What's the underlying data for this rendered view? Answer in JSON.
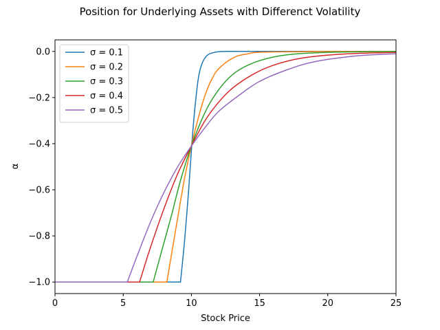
{
  "chart_data": {
    "type": "line",
    "title": "Position for Underlying Assets with Differenct Volatility",
    "xlabel": "Stock Price",
    "ylabel": "α",
    "xlim": [
      0,
      25
    ],
    "ylim": [
      -1.05,
      0.05
    ],
    "x_ticks": [
      0,
      5,
      10,
      15,
      20,
      25
    ],
    "y_ticks": [
      0.0,
      -0.2,
      -0.4,
      -0.6,
      -0.8,
      -1.0
    ],
    "x_tick_labels": [
      "0",
      "5",
      "10",
      "15",
      "20",
      "25"
    ],
    "y_tick_labels": [
      "0.0",
      "−0.2",
      "−0.4",
      "−0.6",
      "−0.8",
      "−1.0"
    ],
    "grid": false,
    "legend_position": "top-left",
    "series": [
      {
        "name": "σ = 0.1",
        "color": "#1f77b4",
        "x": [
          0,
          9.2,
          9.5,
          9.8,
          10.0,
          10.2,
          10.5,
          10.8,
          11.2,
          11.8,
          12.5,
          14,
          25
        ],
        "y": [
          -1.0,
          -1.0,
          -0.82,
          -0.6,
          -0.43,
          -0.28,
          -0.12,
          -0.05,
          -0.015,
          -0.003,
          0.0,
          0.0,
          0.0
        ]
      },
      {
        "name": "σ = 0.2",
        "color": "#ff7f0e",
        "x": [
          0,
          8.2,
          8.6,
          9.0,
          9.5,
          10.0,
          10.5,
          11.0,
          11.5,
          12.0,
          13.0,
          14.0,
          16.0,
          25
        ],
        "y": [
          -1.0,
          -1.0,
          -0.86,
          -0.72,
          -0.55,
          -0.41,
          -0.29,
          -0.19,
          -0.12,
          -0.075,
          -0.03,
          -0.012,
          -0.002,
          0.0
        ]
      },
      {
        "name": "σ = 0.3",
        "color": "#2ca02c",
        "x": [
          0,
          7.2,
          7.8,
          8.5,
          9.2,
          10.0,
          10.8,
          11.5,
          12.5,
          13.5,
          15.0,
          17.0,
          20.0,
          25
        ],
        "y": [
          -1.0,
          -1.0,
          -0.87,
          -0.72,
          -0.56,
          -0.41,
          -0.29,
          -0.21,
          -0.13,
          -0.08,
          -0.04,
          -0.015,
          -0.004,
          0.0
        ]
      },
      {
        "name": "σ = 0.4",
        "color": "#d62728",
        "x": [
          0,
          6.2,
          7.0,
          8.0,
          9.0,
          10.0,
          11.0,
          12.0,
          13.0,
          14.5,
          16.0,
          18.0,
          21.0,
          25
        ],
        "y": [
          -1.0,
          -1.0,
          -0.85,
          -0.68,
          -0.53,
          -0.41,
          -0.3,
          -0.22,
          -0.16,
          -0.1,
          -0.06,
          -0.03,
          -0.012,
          -0.004
        ]
      },
      {
        "name": "σ = 0.5",
        "color": "#9467bd",
        "x": [
          0,
          5.3,
          6.0,
          7.0,
          8.0,
          9.0,
          10.0,
          11.0,
          12.0,
          13.5,
          15.0,
          17.0,
          19.0,
          22.0,
          25
        ],
        "y": [
          -1.0,
          -1.0,
          -0.89,
          -0.74,
          -0.61,
          -0.5,
          -0.41,
          -0.33,
          -0.26,
          -0.19,
          -0.13,
          -0.08,
          -0.045,
          -0.02,
          -0.01
        ]
      }
    ]
  }
}
